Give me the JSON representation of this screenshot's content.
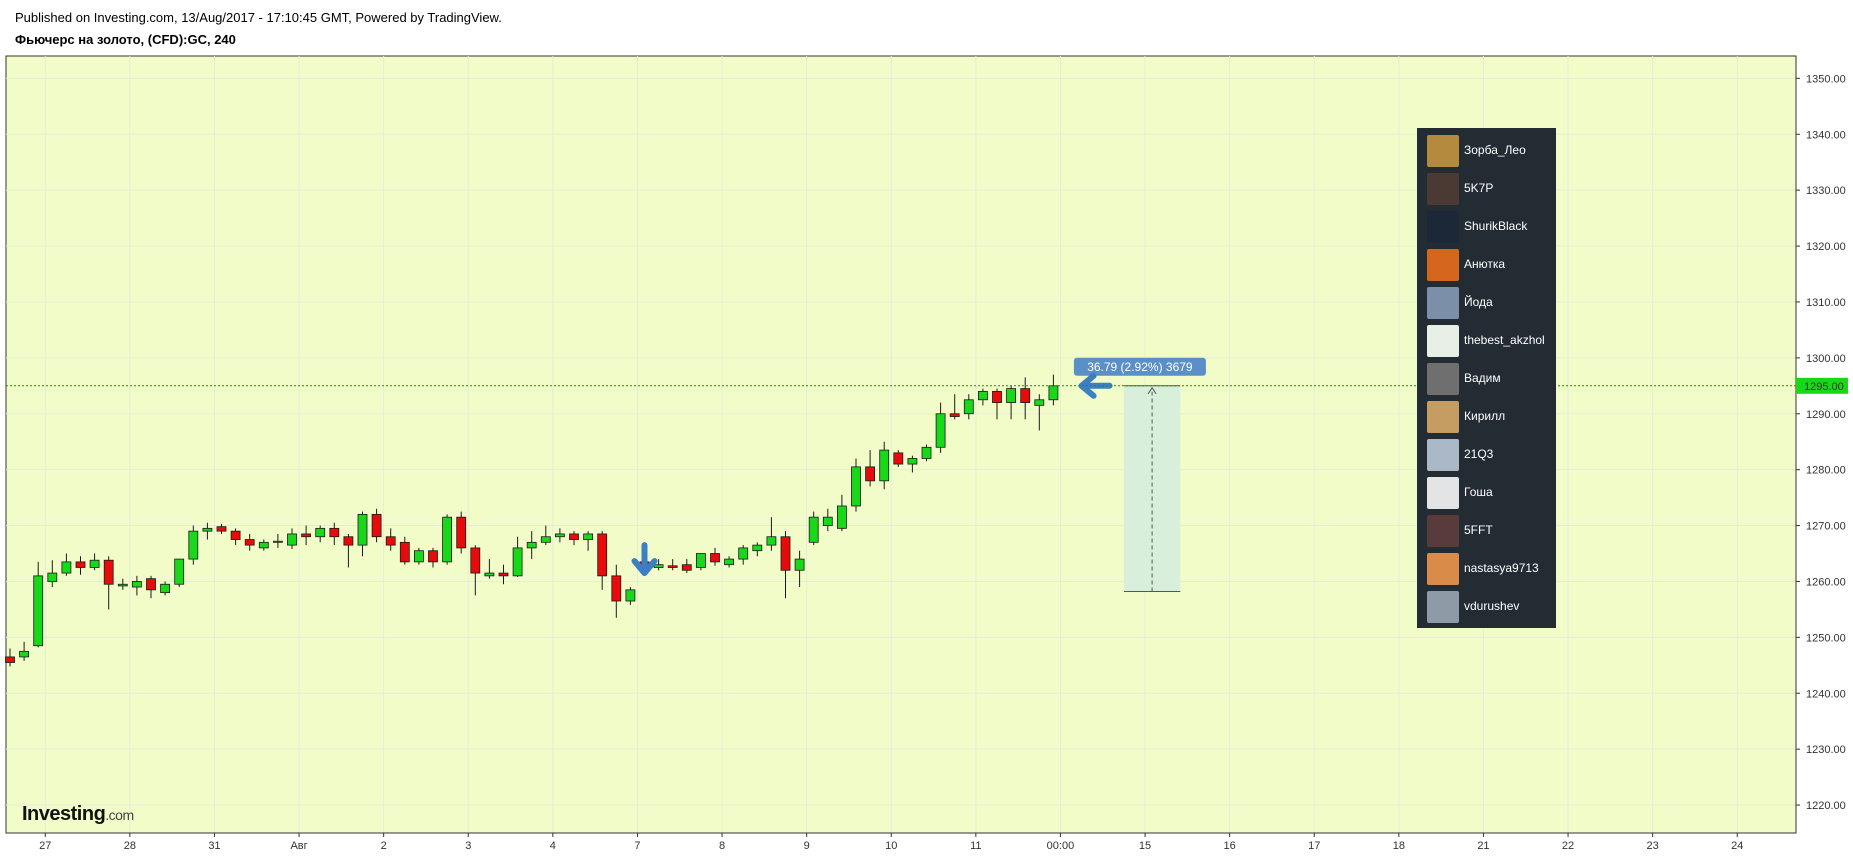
{
  "header": {
    "published": "Published on Investing.com, 13/Aug/2017 - 17:10:45 GMT, Powered by TradingView.",
    "title": "Фьючерс на золото, (CFD):GC, 240"
  },
  "logo": {
    "main": "Investing",
    "domain": ".com"
  },
  "colors": {
    "background": "#f2fcc8",
    "up": "#19d719",
    "down": "#e80b0b",
    "price_line": "#0a9a0a",
    "measure_fill": "#d8efdc",
    "label_blue": "#5b8fc7",
    "arrow_blue": "#3d7fc4",
    "panel": "#232b33"
  },
  "chart_data": {
    "type": "candlestick",
    "symbol": "Фьючерс на золото, (CFD):GC, 240",
    "ylim": [
      1215,
      1354
    ],
    "y_ticks": [
      1350,
      1340,
      1330,
      1320,
      1310,
      1300,
      1290,
      1280,
      1270,
      1260,
      1250,
      1240,
      1230,
      1220
    ],
    "x_ticks": [
      {
        "label": "27",
        "index": 2.5
      },
      {
        "label": "28",
        "index": 8.5
      },
      {
        "label": "31",
        "index": 14.5
      },
      {
        "label": "Авг",
        "index": 20.5
      },
      {
        "label": "2",
        "index": 26.5
      },
      {
        "label": "3",
        "index": 32.5
      },
      {
        "label": "4",
        "index": 38.5
      },
      {
        "label": "7",
        "index": 44.5
      },
      {
        "label": "8",
        "index": 50.5
      },
      {
        "label": "9",
        "index": 56.5
      },
      {
        "label": "10",
        "index": 62.5
      },
      {
        "label": "11",
        "index": 68.5
      },
      {
        "label": "00:00",
        "index": 74.5
      },
      {
        "label": "15",
        "index": 80.5
      },
      {
        "label": "16",
        "index": 86.5
      },
      {
        "label": "17",
        "index": 92.5
      },
      {
        "label": "18",
        "index": 98.5
      },
      {
        "label": "21",
        "index": 104.5
      },
      {
        "label": "22",
        "index": 110.5
      },
      {
        "label": "23",
        "index": 116.5
      },
      {
        "label": "24",
        "index": 122.5
      }
    ],
    "current_price": 1295.0,
    "current_price_label": "1295.00",
    "candles": [
      [
        1246.5,
        1248.0,
        1244.8,
        1245.5
      ],
      [
        1246.5,
        1249.2,
        1245.8,
        1247.5
      ],
      [
        1248.5,
        1263.5,
        1248.2,
        1261.0
      ],
      [
        1260.0,
        1263.8,
        1259.0,
        1261.5
      ],
      [
        1261.5,
        1265.0,
        1261.0,
        1263.5
      ],
      [
        1263.5,
        1264.5,
        1261.2,
        1262.5
      ],
      [
        1262.5,
        1265.0,
        1262.0,
        1263.8
      ],
      [
        1263.8,
        1264.5,
        1255.0,
        1259.5
      ],
      [
        1259.2,
        1260.5,
        1258.5,
        1259.5
      ],
      [
        1259.0,
        1261.0,
        1257.5,
        1260.0
      ],
      [
        1260.5,
        1261.0,
        1257.0,
        1258.5
      ],
      [
        1258.0,
        1260.0,
        1257.5,
        1259.5
      ],
      [
        1259.5,
        1264.0,
        1259.0,
        1264.0
      ],
      [
        1264.0,
        1270.0,
        1263.0,
        1269.0
      ],
      [
        1269.0,
        1270.5,
        1267.5,
        1269.5
      ],
      [
        1269.8,
        1270.3,
        1268.5,
        1269.0
      ],
      [
        1269.0,
        1269.5,
        1266.5,
        1267.5
      ],
      [
        1267.5,
        1268.5,
        1265.5,
        1266.5
      ],
      [
        1266.0,
        1267.5,
        1265.5,
        1267.0
      ],
      [
        1267.0,
        1268.5,
        1266.0,
        1267.2
      ],
      [
        1266.5,
        1269.5,
        1265.8,
        1268.5
      ],
      [
        1268.5,
        1270.0,
        1266.5,
        1268.0
      ],
      [
        1268.0,
        1270.0,
        1267.0,
        1269.5
      ],
      [
        1269.5,
        1270.5,
        1266.5,
        1268.0
      ],
      [
        1268.0,
        1268.5,
        1262.5,
        1266.5
      ],
      [
        1266.5,
        1272.5,
        1264.5,
        1272.0
      ],
      [
        1272.0,
        1273.0,
        1267.0,
        1268.0
      ],
      [
        1268.0,
        1269.5,
        1265.5,
        1266.5
      ],
      [
        1267.0,
        1268.0,
        1263.0,
        1263.5
      ],
      [
        1263.5,
        1266.0,
        1263.0,
        1265.5
      ],
      [
        1265.5,
        1266.0,
        1262.5,
        1263.5
      ],
      [
        1263.5,
        1272.0,
        1263.0,
        1271.5
      ],
      [
        1271.5,
        1272.5,
        1265.0,
        1266.0
      ],
      [
        1266.0,
        1266.5,
        1257.5,
        1261.5
      ],
      [
        1261.0,
        1264.0,
        1260.5,
        1261.5
      ],
      [
        1261.5,
        1263.0,
        1259.5,
        1261.0
      ],
      [
        1261.0,
        1268.0,
        1260.8,
        1266.0
      ],
      [
        1266.0,
        1269.0,
        1264.0,
        1267.0
      ],
      [
        1267.0,
        1270.0,
        1266.5,
        1268.0
      ],
      [
        1268.0,
        1269.5,
        1267.0,
        1268.5
      ],
      [
        1268.5,
        1269.0,
        1266.5,
        1267.5
      ],
      [
        1267.5,
        1269.0,
        1265.5,
        1268.5
      ],
      [
        1268.5,
        1269.0,
        1258.5,
        1261.0
      ],
      [
        1261.0,
        1263.0,
        1253.5,
        1256.5
      ],
      [
        1256.5,
        1259.0,
        1255.8,
        1258.5
      ],
      [
        1263.5,
        1264.0,
        1262.0,
        1262.5
      ],
      [
        1262.5,
        1264.0,
        1262.0,
        1263.0
      ],
      [
        1262.8,
        1264.0,
        1262.0,
        1262.5
      ],
      [
        1263.0,
        1264.0,
        1261.5,
        1262.0
      ],
      [
        1262.5,
        1265.0,
        1262.0,
        1265.0
      ],
      [
        1265.0,
        1266.0,
        1262.8,
        1263.5
      ],
      [
        1263.0,
        1264.5,
        1262.5,
        1264.0
      ],
      [
        1264.0,
        1266.5,
        1263.0,
        1266.0
      ],
      [
        1265.5,
        1267.0,
        1264.5,
        1266.5
      ],
      [
        1266.5,
        1271.5,
        1265.5,
        1268.0
      ],
      [
        1268.0,
        1269.0,
        1257.0,
        1262.0
      ],
      [
        1262.0,
        1265.5,
        1259.0,
        1264.0
      ],
      [
        1267.0,
        1272.5,
        1266.5,
        1271.5
      ],
      [
        1270.0,
        1273.0,
        1269.0,
        1271.5
      ],
      [
        1269.5,
        1275.5,
        1269.0,
        1273.5
      ],
      [
        1273.5,
        1282.0,
        1272.5,
        1280.5
      ],
      [
        1280.5,
        1283.5,
        1277.0,
        1278.0
      ],
      [
        1278.0,
        1285.0,
        1276.5,
        1283.5
      ],
      [
        1283.0,
        1283.5,
        1280.5,
        1281.0
      ],
      [
        1281.0,
        1282.5,
        1279.5,
        1282.0
      ],
      [
        1282.0,
        1284.5,
        1281.5,
        1284.0
      ],
      [
        1284.0,
        1292.0,
        1283.0,
        1290.0
      ],
      [
        1290.0,
        1293.5,
        1289.0,
        1289.5
      ],
      [
        1290.0,
        1293.5,
        1289.0,
        1292.5
      ],
      [
        1292.5,
        1294.5,
        1291.5,
        1294.0
      ],
      [
        1294.0,
        1294.5,
        1289.0,
        1292.0
      ],
      [
        1292.0,
        1295.0,
        1289.0,
        1294.5
      ],
      [
        1294.5,
        1296.5,
        1289.0,
        1292.0
      ],
      [
        1291.5,
        1293.5,
        1287.0,
        1292.5
      ],
      [
        1292.5,
        1297.0,
        1291.5,
        1295.0
      ]
    ],
    "annotations": {
      "measure_label": "36.79 (2.92%) 3679",
      "measure_range": [
        1258.2,
        1295.0
      ],
      "measure_index_range": [
        79.0,
        83.0
      ],
      "down_arrow_index": 45,
      "down_arrow_price": 1261.5,
      "left_arrow_index": 76,
      "left_arrow_price": 1295.0
    }
  },
  "viewers": [
    {
      "name": "Зорба_Лео",
      "avatar": "leopard-avatar",
      "color": "#b38a3e"
    },
    {
      "name": "5K7P",
      "avatar": "portrait-avatar",
      "color": "#4a3a33"
    },
    {
      "name": "ShurikBlack",
      "avatar": "dark-avatar",
      "color": "#1c2838"
    },
    {
      "name": "Анютка",
      "avatar": "fox-avatar",
      "color": "#d4661e"
    },
    {
      "name": "Йода",
      "avatar": "yoda-avatar",
      "color": "#7b8fa8"
    },
    {
      "name": "thebest_akzhol",
      "avatar": "chart-arrow-avatar",
      "color": "#e8efe6"
    },
    {
      "name": "Вадим",
      "avatar": "cat-avatar",
      "color": "#6f6f6f"
    },
    {
      "name": "Кирилл",
      "avatar": "cat-face-avatar",
      "color": "#c59d63"
    },
    {
      "name": "21Q3",
      "avatar": "silhouette-avatar",
      "color": "#aab8c8"
    },
    {
      "name": "Гоша",
      "avatar": "grid-avatar",
      "color": "#e2e4e6"
    },
    {
      "name": "5FFT",
      "avatar": "portrait-avatar",
      "color": "#5a3b3b"
    },
    {
      "name": "nastasya9713",
      "avatar": "cartoon-avatar",
      "color": "#d98b4a"
    },
    {
      "name": "vdurushev",
      "avatar": "photo-avatar",
      "color": "#8e9aa6"
    }
  ]
}
